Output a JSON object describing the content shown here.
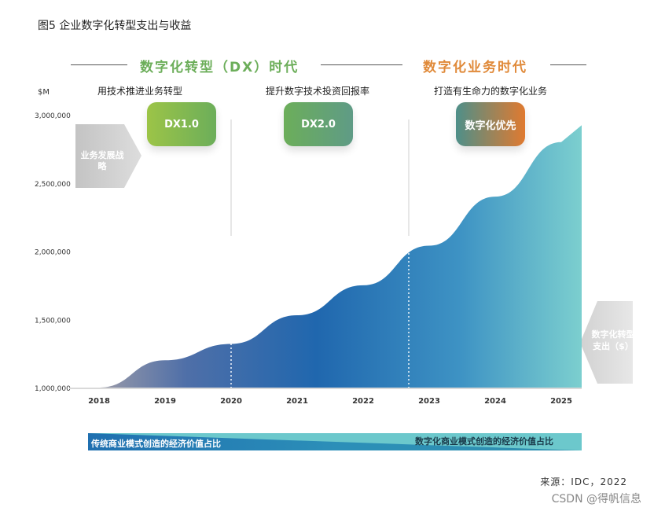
{
  "figure_title": "图5 企业数字化转型支出与收益",
  "eras": {
    "dx": "数字化转型（DX）时代",
    "biz": "数字化业务时代"
  },
  "phases": {
    "p1": "用技术推进业务转型",
    "p2": "提升数字技术投资回报率",
    "p3": "打造有生命力的数字化业务"
  },
  "stages": {
    "dx1": "DX1.0",
    "dx2": "DX2.0",
    "digital_first": "数字化优先"
  },
  "left_arrow": "业务发展战略",
  "right_arrow_line1": "数字化转型",
  "right_arrow_line2": "支出（$）",
  "unit": "$M",
  "bottom_band": {
    "left": "传统商业模式创造的经济价值占比",
    "right": "数字化商业模式创造的经济价值占比"
  },
  "source": "来源：IDC，2022",
  "watermark": "CSDN @得帆信息",
  "colors": {
    "dx_green": "#6cae5a",
    "biz_orange": "#e08a3a",
    "area_dark_blue": "#2067ae",
    "area_teal": "#7ccfcf"
  },
  "chart_data": {
    "type": "area",
    "title": "",
    "xlabel": "",
    "ylabel": "$M",
    "x": [
      "2018",
      "2019",
      "2020",
      "2021",
      "2022",
      "2023",
      "2024",
      "2025"
    ],
    "ylim": [
      1000000,
      3000000
    ],
    "yticks": [
      "1,000,000",
      "1,500,000",
      "2,000,000",
      "2,500,000",
      "3,000,000"
    ],
    "series": [
      {
        "values": [
          1000000,
          1200000,
          1320000,
          1530000,
          1750000,
          2040000,
          2400000,
          2800000
        ]
      }
    ],
    "legend": "none",
    "grid": false
  }
}
